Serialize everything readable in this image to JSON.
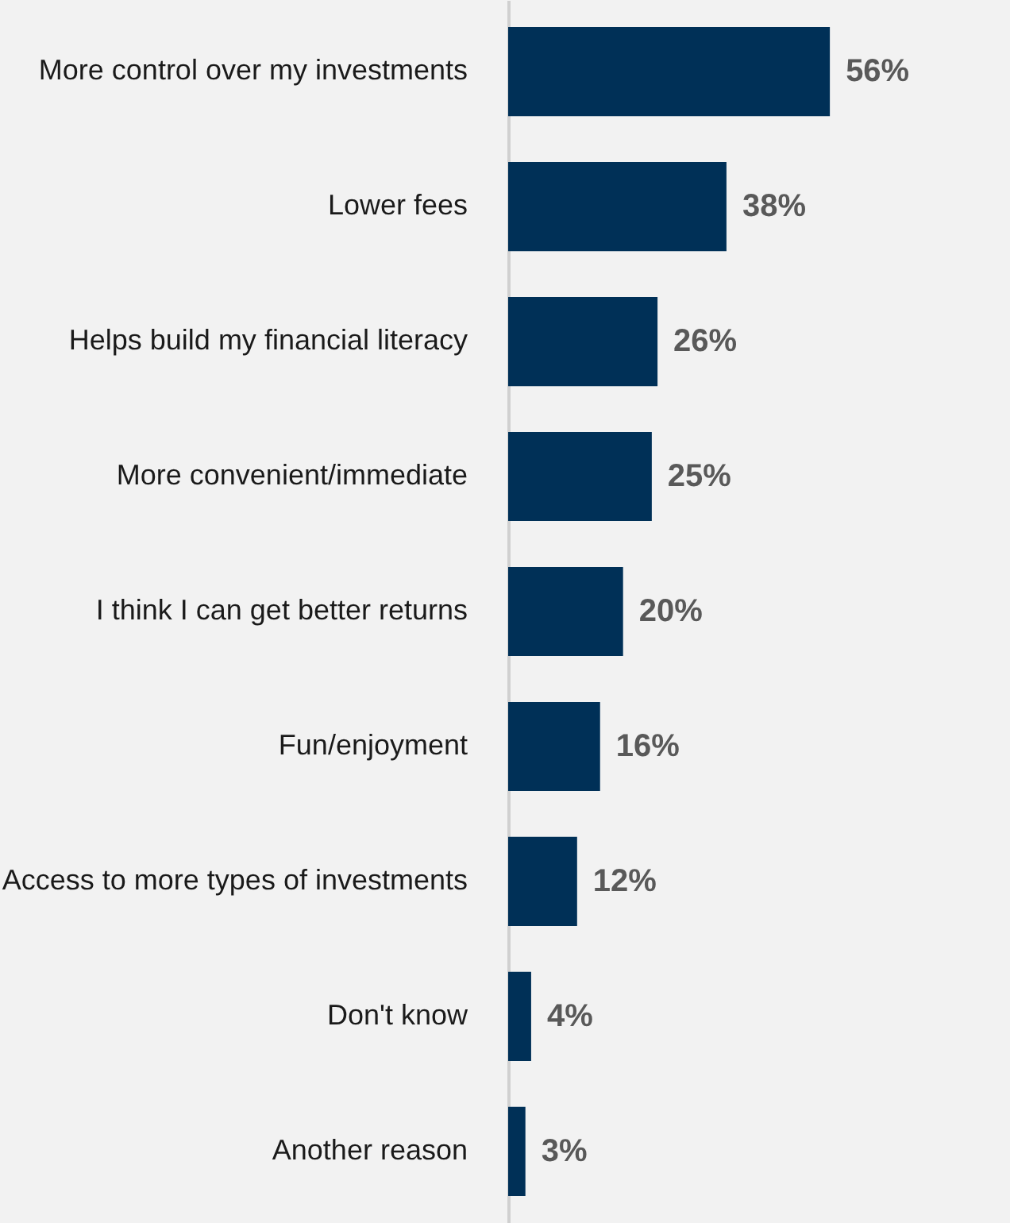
{
  "chart_data": {
    "type": "bar",
    "orientation": "horizontal",
    "categories": [
      "More control over my investments",
      "Lower fees",
      "Helps build my financial literacy",
      "More convenient/immediate",
      "I think I can get better returns",
      "Fun/enjoyment",
      "Access to more types of investments",
      "Don't know",
      "Another reason"
    ],
    "values": [
      56,
      38,
      26,
      25,
      20,
      16,
      12,
      4,
      3
    ],
    "value_labels": [
      "56%",
      "38%",
      "26%",
      "25%",
      "20%",
      "16%",
      "12%",
      "4%",
      "3%"
    ],
    "color": "#003057",
    "grid": false
  }
}
